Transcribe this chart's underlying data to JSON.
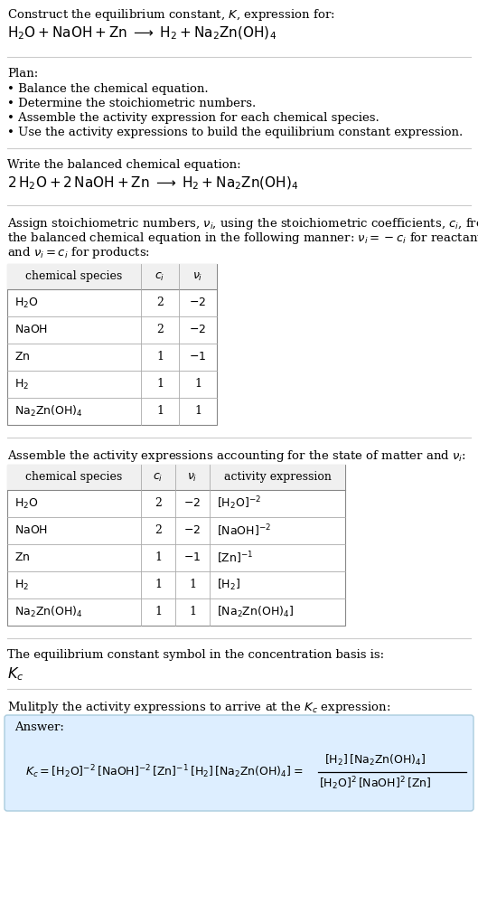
{
  "bg_color": "#ffffff",
  "answer_bg_color": "#ddeeff",
  "text_color": "#000000",
  "section_line_color": "#cccccc",
  "table_line_color": "#aaaaaa",
  "title_line1": "Construct the equilibrium constant, $K$, expression for:",
  "title_line2": "$\\mathrm{H_2O + NaOH + Zn \\;\\longrightarrow\\; H_2 + Na_2Zn(OH)_4}$",
  "plan_header": "Plan:",
  "plan_items": [
    "\\bullet Balance the chemical equation.",
    "\\bullet Determine the stoichiometric numbers.",
    "\\bullet Assemble the activity expression for each chemical species.",
    "\\bullet Use the activity expressions to build the equilibrium constant expression."
  ],
  "balanced_header": "Write the balanced chemical equation:",
  "balanced_eq": "$\\mathrm{2\\,H_2O + 2\\,NaOH + Zn \\;\\longrightarrow\\; H_2 + Na_2Zn(OH)_4}$",
  "stoich_intro": "Assign stoichiometric numbers, $\\nu_i$, using the stoichiometric coefficients, $c_i$, from\nthe balanced chemical equation in the following manner: $\\nu_i = -c_i$ for reactants\nand $\\nu_i = c_i$ for products:",
  "table1_headers": [
    "chemical species",
    "$c_i$",
    "$\\nu_i$"
  ],
  "table1_col_align": [
    "left",
    "center",
    "center"
  ],
  "table1_rows": [
    [
      "$\\mathrm{H_2O}$",
      "2",
      "$-2$"
    ],
    [
      "$\\mathrm{NaOH}$",
      "2",
      "$-2$"
    ],
    [
      "$\\mathrm{Zn}$",
      "1",
      "$-1$"
    ],
    [
      "$\\mathrm{H_2}$",
      "1",
      "1"
    ],
    [
      "$\\mathrm{Na_2Zn(OH)_4}$",
      "1",
      "1"
    ]
  ],
  "activity_intro": "Assemble the activity expressions accounting for the state of matter and $\\nu_i$:",
  "table2_headers": [
    "chemical species",
    "$c_i$",
    "$\\nu_i$",
    "activity expression"
  ],
  "table2_col_align": [
    "left",
    "center",
    "center",
    "left"
  ],
  "table2_rows": [
    [
      "$\\mathrm{H_2O}$",
      "2",
      "$-2$",
      "$[\\mathrm{H_2O}]^{-2}$"
    ],
    [
      "$\\mathrm{NaOH}$",
      "2",
      "$-2$",
      "$[\\mathrm{NaOH}]^{-2}$"
    ],
    [
      "$\\mathrm{Zn}$",
      "1",
      "$-1$",
      "$[\\mathrm{Zn}]^{-1}$"
    ],
    [
      "$\\mathrm{H_2}$",
      "1",
      "1",
      "$[\\mathrm{H_2}]$"
    ],
    [
      "$\\mathrm{Na_2Zn(OH)_4}$",
      "1",
      "1",
      "$[\\mathrm{Na_2Zn(OH)_4}]$"
    ]
  ],
  "kc_text1": "The equilibrium constant symbol in the concentration basis is:",
  "kc_symbol": "$K_c$",
  "multiply_text": "Mulitply the activity expressions to arrive at the $K_c$ expression:",
  "answer_label": "Answer:",
  "answer_eq_line1": "$K_c = [\\mathrm{H_2O}]^{-2}\\,[\\mathrm{NaOH}]^{-2}\\,[\\mathrm{Zn}]^{-1}\\,[\\mathrm{H_2}]\\,[\\mathrm{Na_2Zn(OH)_4}] = $",
  "answer_eq_right_num": "$[\\mathrm{H_2}]\\,[\\mathrm{Na_2Zn(OH)_4}]$",
  "answer_eq_right_den": "$[\\mathrm{H_2O}]^2\\,[\\mathrm{NaOH}]^2\\,[\\mathrm{Zn}]$",
  "font_size": 9.5,
  "font_size_eq": 9.0,
  "font_size_table": 9.0
}
